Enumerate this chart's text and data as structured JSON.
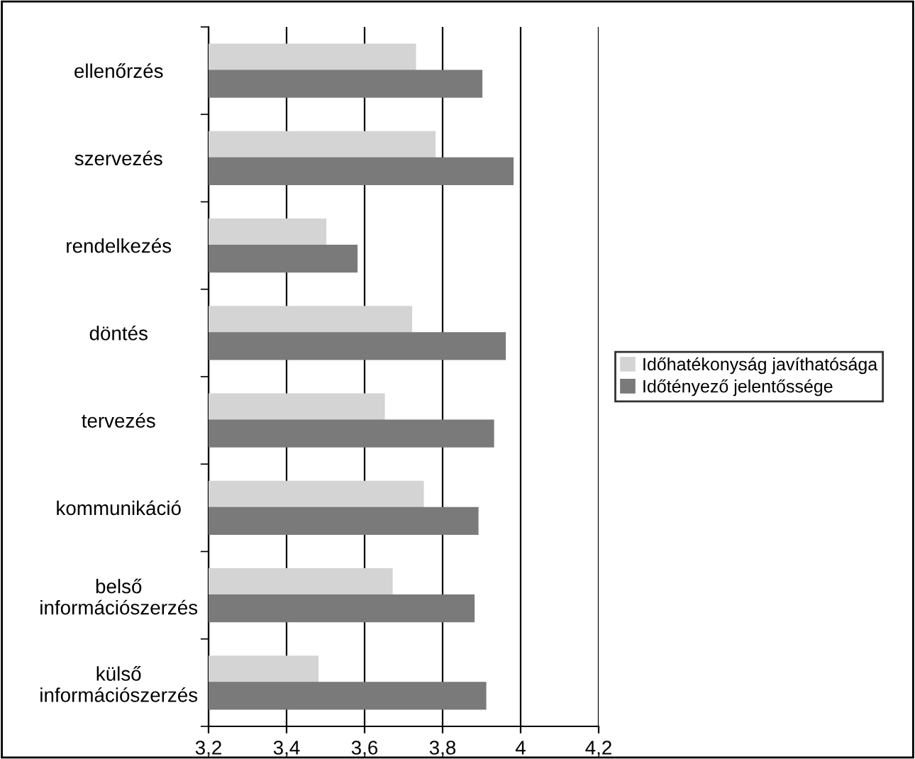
{
  "chart_data": {
    "type": "bar",
    "orientation": "horizontal",
    "categories": [
      "ellenőrzés",
      "szervezés",
      "rendelkezés",
      "döntés",
      "tervezés",
      "kommunikáció",
      "belső\ninformációszerzés",
      "külső\ninformációszerzés"
    ],
    "series": [
      {
        "name": "Időhatékonyság javíthatósága",
        "color": "#d4d4d4",
        "values": [
          3.73,
          3.78,
          3.5,
          3.72,
          3.65,
          3.75,
          3.67,
          3.48
        ]
      },
      {
        "name": "Időtényező jelentőssége",
        "color": "#7a7a7a",
        "values": [
          3.9,
          3.98,
          3.58,
          3.96,
          3.93,
          3.89,
          3.88,
          3.91
        ]
      }
    ],
    "xlim": [
      3.2,
      4.2
    ],
    "xticks": [
      {
        "value": 3.2,
        "label": "3,2"
      },
      {
        "value": 3.4,
        "label": "3,4"
      },
      {
        "value": 3.6,
        "label": "3,6"
      },
      {
        "value": 3.8,
        "label": "3,8"
      },
      {
        "value": 4,
        "label": "4"
      },
      {
        "value": 4.2,
        "label": "4,2"
      }
    ],
    "grid": "x",
    "legend": "right"
  }
}
